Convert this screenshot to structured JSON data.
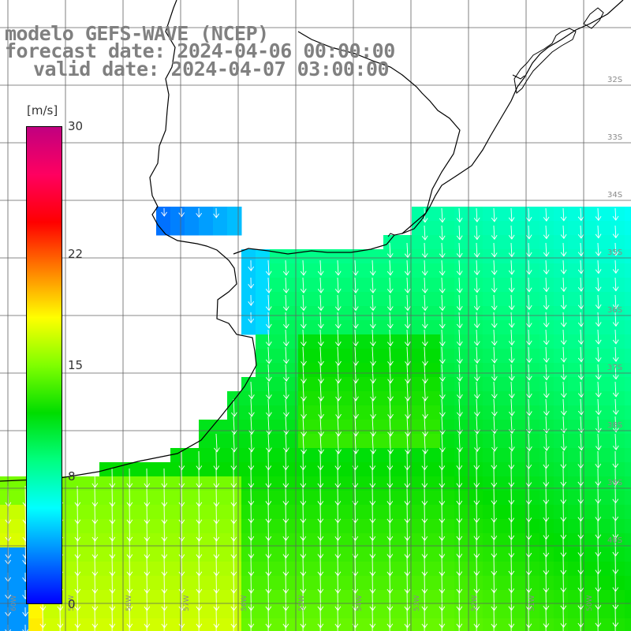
{
  "title": {
    "line1": "modelo GEFS-WAVE (NCEP)",
    "line2": "forecast date: 2024-04-06 00:00:00",
    "line3": "valid date: 2024-04-07 03:00:00"
  },
  "colorbar": {
    "unit": "[m/s]",
    "ticks": [
      "30",
      "22",
      "15",
      "8",
      "0"
    ],
    "tick_values": [
      30,
      22,
      15,
      8,
      0
    ],
    "range": [
      0,
      30
    ],
    "colors": [
      "#0000ff",
      "#0080ff",
      "#00ffff",
      "#00ff80",
      "#00dd00",
      "#80ff00",
      "#ffff00",
      "#ff8000",
      "#ff0000",
      "#ff0060",
      "#c00080"
    ]
  },
  "map": {
    "latitude_labels": [
      "32S",
      "33S",
      "34S",
      "35S",
      "36S",
      "37S",
      "38S",
      "39S",
      "40S"
    ],
    "longitude_labels": [
      "60W",
      "59W",
      "58W",
      "57W",
      "56W",
      "55W",
      "54W",
      "53W",
      "52W",
      "51W",
      "50W"
    ],
    "colors": {
      "land": "#ffffff",
      "coast": "#000000",
      "grid": "#606060",
      "arrow": "#ffffff",
      "label": "#8a8a8a"
    }
  }
}
